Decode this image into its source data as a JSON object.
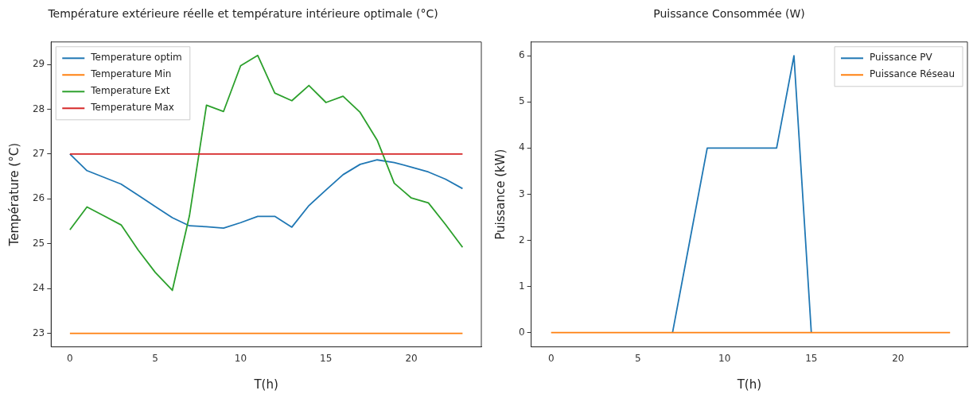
{
  "chart_data": [
    {
      "type": "line",
      "title": "Température extérieure réelle et température intérieure optimale (°C)",
      "xlabel": "T(h)",
      "ylabel": "Température (°C)",
      "x": [
        0,
        1,
        2,
        3,
        4,
        5,
        6,
        7,
        8,
        9,
        10,
        11,
        12,
        13,
        14,
        15,
        16,
        17,
        18,
        19,
        20,
        21,
        22,
        23
      ],
      "xlim": [
        -1.1,
        24.1
      ],
      "ylim": [
        22.7,
        29.5
      ],
      "xticks": [
        0,
        5,
        10,
        15,
        20
      ],
      "yticks": [
        23,
        24,
        25,
        26,
        27,
        28,
        29
      ],
      "grid": false,
      "legend": "top left",
      "series": [
        {
          "name": "Temperature optim",
          "color": "#1f77b4",
          "values": [
            27.0,
            26.63,
            26.48,
            26.33,
            26.08,
            25.83,
            25.58,
            25.4,
            25.38,
            25.35,
            25.47,
            25.61,
            25.61,
            25.37,
            25.85,
            26.2,
            26.54,
            26.77,
            26.87,
            26.81,
            26.71,
            26.6,
            26.44,
            26.23
          ]
        },
        {
          "name": "Temperature Min",
          "color": "#ff7f0e",
          "values": [
            23,
            23,
            23,
            23,
            23,
            23,
            23,
            23,
            23,
            23,
            23,
            23,
            23,
            23,
            23,
            23,
            23,
            23,
            23,
            23,
            23,
            23,
            23,
            23
          ]
        },
        {
          "name": "Temperature Ext",
          "color": "#2ca02c",
          "values": [
            25.31,
            25.82,
            25.62,
            25.42,
            24.86,
            24.36,
            23.96,
            25.62,
            28.09,
            27.95,
            28.97,
            29.2,
            28.36,
            28.19,
            28.53,
            28.15,
            28.29,
            27.93,
            27.31,
            26.35,
            26.02,
            25.91,
            25.43,
            24.92
          ]
        },
        {
          "name": "Temperature Max",
          "color": "#d62728",
          "values": [
            27,
            27,
            27,
            27,
            27,
            27,
            27,
            27,
            27,
            27,
            27,
            27,
            27,
            27,
            27,
            27,
            27,
            27,
            27,
            27,
            27,
            27,
            27,
            27
          ]
        }
      ]
    },
    {
      "type": "line",
      "title": "Puissance Consommée (W)",
      "xlabel": "T(h)",
      "ylabel": "Puissance (kW)",
      "x": [
        0,
        1,
        2,
        3,
        4,
        5,
        6,
        7,
        8,
        9,
        10,
        11,
        12,
        13,
        14,
        15,
        16,
        17,
        18,
        19,
        20,
        21,
        22,
        23
      ],
      "xlim": [
        -1.15,
        24.0
      ],
      "ylim": [
        -0.31,
        6.3
      ],
      "xticks": [
        0,
        5,
        10,
        15,
        20
      ],
      "yticks": [
        0,
        1,
        2,
        3,
        4,
        5,
        6
      ],
      "grid": false,
      "legend": "top right",
      "series": [
        {
          "name": "Puissance PV",
          "color": "#1f77b4",
          "values": [
            null,
            null,
            null,
            null,
            null,
            null,
            null,
            0,
            2,
            4,
            4,
            4,
            4,
            4,
            6,
            0,
            null,
            null,
            null,
            null,
            null,
            null,
            null,
            null
          ]
        },
        {
          "name": "Puissance Réseau",
          "color": "#ff7f0e",
          "values": [
            0,
            0,
            0,
            0,
            0,
            0,
            0,
            0,
            0,
            0,
            0,
            0,
            0,
            0,
            0,
            0,
            0,
            0,
            0,
            0,
            0,
            0,
            0,
            0
          ]
        }
      ]
    }
  ]
}
